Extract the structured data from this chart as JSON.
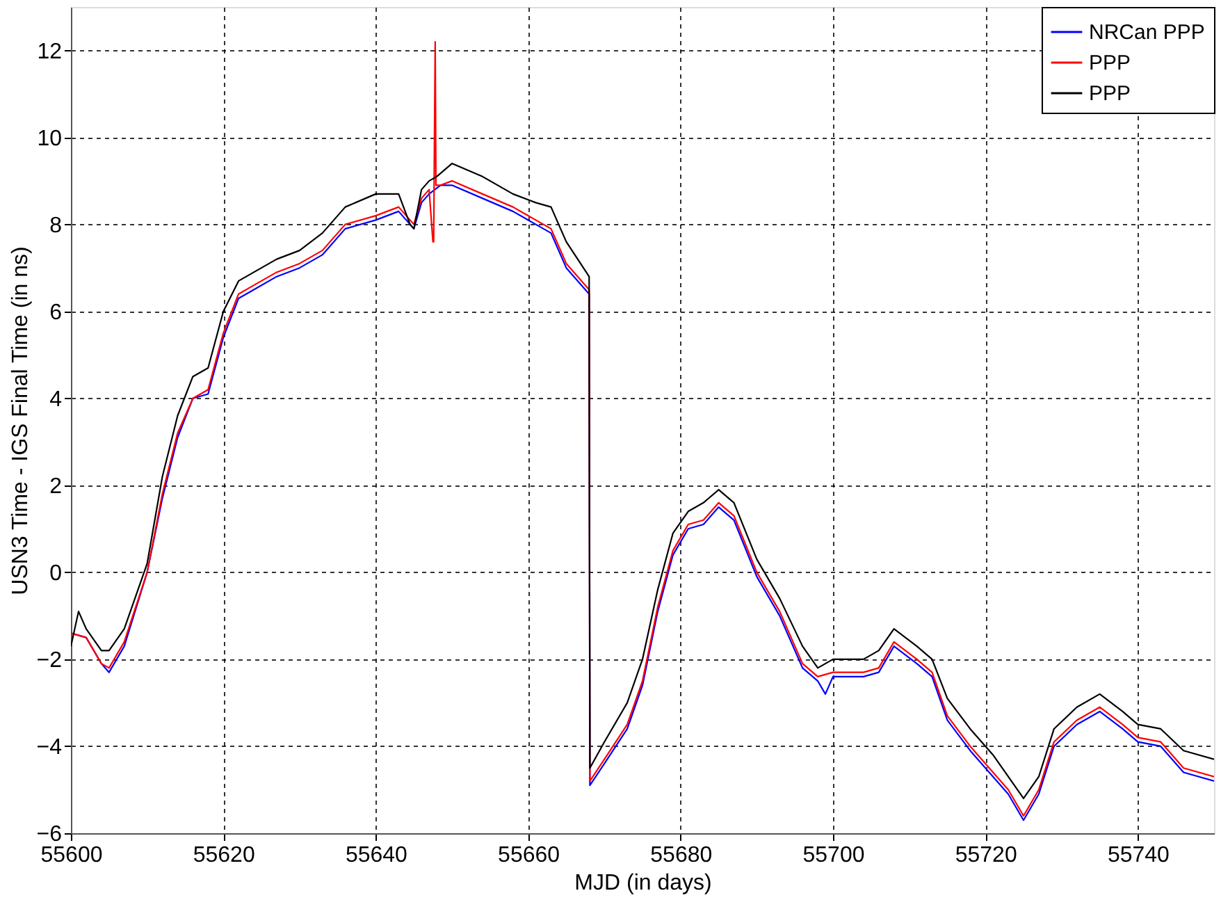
{
  "chart_data": {
    "type": "line",
    "xlabel": "MJD (in days)",
    "ylabel": "USN3 Time - IGS Final Time (in ns)",
    "xlim": [
      55600,
      55750
    ],
    "xticks": [
      55600,
      55620,
      55640,
      55660,
      55680,
      55700,
      55720,
      55740
    ],
    "ylim": [
      -6,
      13
    ],
    "yticks": [
      -6,
      -4,
      -2,
      0,
      2,
      4,
      6,
      8,
      10,
      12
    ],
    "grid": true,
    "legend": "top right",
    "line_style": "solid",
    "marker": "none",
    "series": [
      {
        "name": "NRCan PPP",
        "color": "#0000ff",
        "x": [
          55600,
          55602,
          55604,
          55605,
          55607,
          55610,
          55612,
          55614,
          55616,
          55618,
          55620,
          55622,
          55624,
          55627,
          55630,
          55633,
          55636,
          55640,
          55643,
          55645,
          55646,
          55647,
          55648.5,
          55650,
          55654,
          55658,
          55661,
          55663,
          55665,
          55668,
          55668.1,
          55670,
          55673,
          55675,
          55677,
          55679,
          55681,
          55683,
          55685,
          55687,
          55690,
          55693,
          55696,
          55698,
          55699,
          55700,
          55704,
          55706,
          55708,
          55711,
          55713,
          55715,
          55718,
          55721,
          55723,
          55725,
          55727,
          55729,
          55732,
          55735,
          55738,
          55740,
          55743,
          55746,
          55750
        ],
        "values": [
          -1.4,
          -1.5,
          -2.1,
          -2.3,
          -1.7,
          0.0,
          1.7,
          3.1,
          4.0,
          4.1,
          5.4,
          6.3,
          6.5,
          6.8,
          7.0,
          7.3,
          7.9,
          8.1,
          8.3,
          7.9,
          8.5,
          8.7,
          8.9,
          8.9,
          8.6,
          8.3,
          8.0,
          7.8,
          7.0,
          6.4,
          -4.9,
          -4.4,
          -3.6,
          -2.6,
          -0.9,
          0.4,
          1.0,
          1.1,
          1.5,
          1.2,
          -0.1,
          -1.0,
          -2.2,
          -2.5,
          -2.8,
          -2.4,
          -2.4,
          -2.3,
          -1.7,
          -2.1,
          -2.4,
          -3.4,
          -4.1,
          -4.7,
          -5.1,
          -5.7,
          -5.1,
          -4.0,
          -3.5,
          -3.2,
          -3.6,
          -3.9,
          -4.0,
          -4.6,
          -4.8
        ]
      },
      {
        "name": "PPP",
        "color": "#ff0000",
        "x": [
          55600,
          55602,
          55604,
          55605,
          55607,
          55610,
          55612,
          55614,
          55616,
          55618,
          55620,
          55622,
          55624,
          55627,
          55630,
          55633,
          55636,
          55640,
          55643,
          55645,
          55646,
          55647,
          55647.5,
          55647.6,
          55647.8,
          55647.9,
          55648.5,
          55650,
          55654,
          55658,
          55661,
          55663,
          55665,
          55668,
          55668.1,
          55670,
          55673,
          55675,
          55677,
          55679,
          55681,
          55683,
          55685,
          55687,
          55690,
          55693,
          55696,
          55698,
          55700,
          55704,
          55706,
          55708,
          55711,
          55713,
          55715,
          55718,
          55721,
          55723,
          55725,
          55727,
          55729,
          55732,
          55735,
          55738,
          55740,
          55743,
          55746,
          55750
        ],
        "values": [
          -1.4,
          -1.5,
          -2.1,
          -2.2,
          -1.6,
          0.0,
          1.8,
          3.2,
          4.0,
          4.2,
          5.5,
          6.4,
          6.6,
          6.9,
          7.1,
          7.4,
          8.0,
          8.2,
          8.4,
          8.0,
          8.6,
          8.8,
          7.6,
          7.6,
          12.2,
          8.9,
          8.9,
          9.0,
          8.7,
          8.4,
          8.1,
          7.9,
          7.1,
          6.5,
          -4.8,
          -4.3,
          -3.5,
          -2.5,
          -0.8,
          0.5,
          1.1,
          1.2,
          1.6,
          1.3,
          0.0,
          -0.9,
          -2.1,
          -2.4,
          -2.3,
          -2.3,
          -2.2,
          -1.6,
          -2.0,
          -2.3,
          -3.3,
          -4.0,
          -4.6,
          -5.0,
          -5.6,
          -5.0,
          -3.9,
          -3.4,
          -3.1,
          -3.5,
          -3.8,
          -3.9,
          -4.5,
          -4.7
        ]
      },
      {
        "name": "PPP",
        "color": "#000000",
        "x": [
          55600,
          55601,
          55602,
          55604,
          55605,
          55607,
          55610,
          55612,
          55614,
          55616,
          55618,
          55620,
          55622,
          55624,
          55627,
          55630,
          55633,
          55636,
          55640,
          55643,
          55644.5,
          55645,
          55646,
          55647,
          55648,
          55650,
          55654,
          55658,
          55661,
          55663,
          55665,
          55668,
          55668.1,
          55670,
          55673,
          55675,
          55677,
          55679,
          55681,
          55683,
          55685,
          55687,
          55690,
          55693,
          55696,
          55698,
          55700,
          55704,
          55706,
          55708,
          55711,
          55713,
          55715,
          55718,
          55721,
          55723,
          55725,
          55727,
          55729,
          55732,
          55735,
          55738,
          55740,
          55743,
          55746,
          55750
        ],
        "values": [
          -1.7,
          -0.9,
          -1.3,
          -1.8,
          -1.8,
          -1.3,
          0.2,
          2.2,
          3.6,
          4.5,
          4.7,
          6.0,
          6.7,
          6.9,
          7.2,
          7.4,
          7.8,
          8.4,
          8.7,
          8.7,
          8.0,
          7.9,
          8.8,
          9.0,
          9.1,
          9.4,
          9.1,
          8.7,
          8.5,
          8.4,
          7.6,
          6.8,
          -4.5,
          -3.9,
          -3.0,
          -2.0,
          -0.4,
          0.9,
          1.4,
          1.6,
          1.9,
          1.6,
          0.3,
          -0.6,
          -1.7,
          -2.2,
          -2.0,
          -2.0,
          -1.8,
          -1.3,
          -1.7,
          -2.0,
          -2.9,
          -3.6,
          -4.2,
          -4.7,
          -5.2,
          -4.7,
          -3.6,
          -3.1,
          -2.8,
          -3.2,
          -3.5,
          -3.6,
          -4.1,
          -4.3
        ]
      }
    ]
  }
}
